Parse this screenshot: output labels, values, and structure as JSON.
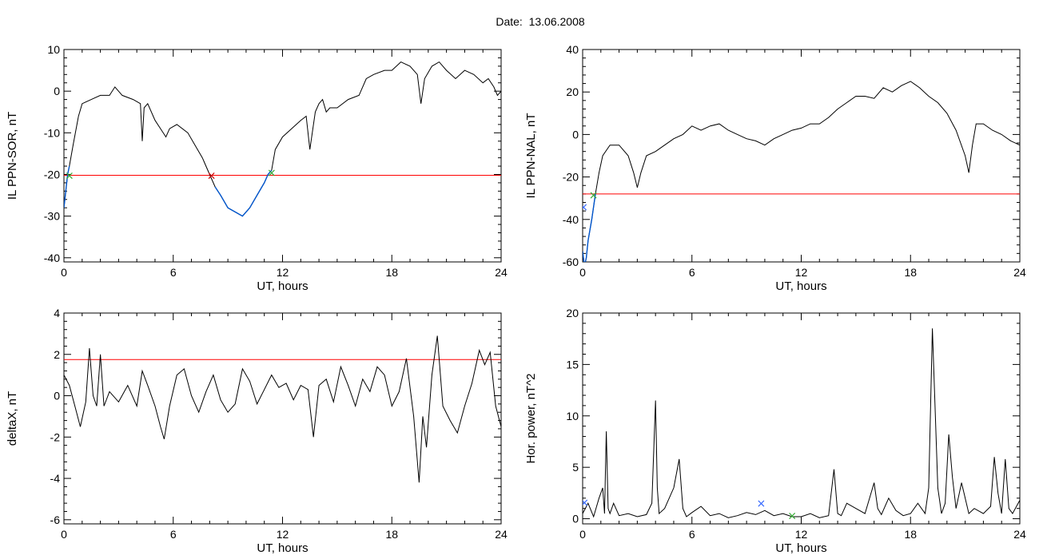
{
  "header": {
    "date_label": "Date:",
    "date_value": "13.06.2008"
  },
  "colors": {
    "axis": "#000000",
    "trace": "#000000",
    "threshold": "#ff0000",
    "highlight": "#0055cc",
    "marker_red": "#cc0000",
    "marker_green": "#33aa33",
    "marker_blue": "#3366ff"
  },
  "chart_data": [
    {
      "type": "line",
      "xlabel": "UT, hours",
      "ylabel": "IL PPN-SOR, nT",
      "xlim": [
        0,
        24
      ],
      "ylim": [
        -41,
        10
      ],
      "xticks": [
        0,
        6,
        12,
        18,
        24
      ],
      "yticks": [
        -40,
        -30,
        -20,
        -10,
        0,
        10
      ],
      "threshold": -20.2,
      "series": [
        {
          "x": [
            0.0,
            0.1,
            0.2,
            0.3,
            0.5,
            0.8,
            1.0,
            1.5,
            2.0,
            2.5,
            2.8,
            3.2,
            3.8,
            4.2,
            4.3,
            4.4,
            4.6,
            5.0,
            5.3,
            5.6,
            5.8,
            6.2,
            6.8,
            7.2,
            7.6,
            8.0,
            8.3,
            8.6,
            9.0,
            9.4,
            9.8,
            10.2,
            10.6,
            11.0,
            11.2,
            11.4,
            11.6,
            12.0,
            12.5,
            13.0,
            13.3,
            13.5,
            13.8,
            14.0,
            14.2,
            14.4,
            14.6,
            15.0,
            15.6,
            16.2,
            16.6,
            17.0,
            17.6,
            18.0,
            18.5,
            19.0,
            19.4,
            19.6,
            19.8,
            20.2,
            20.6,
            21.0,
            21.5,
            22.0,
            22.5,
            23.0,
            23.3,
            23.6,
            23.8,
            24.0
          ],
          "y": [
            -28,
            -24,
            -20,
            -18,
            -13,
            -6,
            -3,
            -2,
            -1,
            -1,
            1,
            -1,
            -2,
            -3,
            -12,
            -4,
            -3,
            -7,
            -9,
            -11,
            -9,
            -8,
            -10,
            -13,
            -16,
            -20,
            -23,
            -25,
            -28,
            -29,
            -30,
            -28,
            -25,
            -22,
            -20,
            -19,
            -14,
            -11,
            -9,
            -7,
            -6,
            -14,
            -5,
            -3,
            -2,
            -5,
            -4,
            -4,
            -2,
            -1,
            3,
            4,
            5,
            5,
            7,
            6,
            4,
            -3,
            3,
            6,
            7,
            5,
            3,
            5,
            4,
            2,
            3,
            1,
            -1,
            0
          ],
          "highlight_range": [
            0.0,
            0.3
          ],
          "highlight_range2": [
            8.1,
            11.5
          ]
        }
      ],
      "markers": [
        {
          "x": 0.3,
          "y": -20.2,
          "symbol": "×",
          "color": "green"
        },
        {
          "x": 8.1,
          "y": -20.2,
          "symbol": "×",
          "color": "red"
        },
        {
          "x": 11.4,
          "y": -19.5,
          "symbol": "×",
          "color": "green"
        }
      ]
    },
    {
      "type": "line",
      "xlabel": "UT, hours",
      "ylabel": "IL PPN-NAL, nT",
      "xlim": [
        0,
        24
      ],
      "ylim": [
        -60,
        40
      ],
      "xticks": [
        0,
        6,
        12,
        18,
        24
      ],
      "yticks": [
        -60,
        -40,
        -20,
        0,
        20,
        40
      ],
      "threshold": -28,
      "series": [
        {
          "x": [
            0.0,
            0.1,
            0.2,
            0.3,
            0.5,
            0.7,
            0.9,
            1.1,
            1.5,
            2.0,
            2.5,
            2.8,
            3.0,
            3.2,
            3.5,
            4.0,
            4.5,
            5.0,
            5.5,
            6.0,
            6.5,
            7.0,
            7.5,
            8.0,
            8.5,
            9.0,
            9.5,
            10.0,
            10.5,
            11.0,
            11.5,
            12.0,
            12.5,
            13.0,
            13.5,
            14.0,
            14.5,
            15.0,
            15.5,
            16.0,
            16.5,
            17.0,
            17.5,
            18.0,
            18.5,
            19.0,
            19.5,
            20.0,
            20.5,
            21.0,
            21.2,
            21.4,
            21.6,
            22.0,
            22.5,
            23.0,
            23.5,
            24.0
          ],
          "y": [
            -55,
            -62,
            -58,
            -50,
            -40,
            -28,
            -18,
            -10,
            -5,
            -5,
            -10,
            -18,
            -25,
            -18,
            -10,
            -8,
            -5,
            -2,
            0,
            4,
            2,
            4,
            5,
            2,
            0,
            -2,
            -3,
            -5,
            -2,
            0,
            2,
            3,
            5,
            5,
            8,
            12,
            15,
            18,
            18,
            17,
            22,
            20,
            23,
            25,
            22,
            18,
            15,
            10,
            2,
            -10,
            -18,
            -5,
            5,
            5,
            2,
            0,
            -3,
            -5
          ],
          "highlight_range": [
            0.0,
            0.7
          ]
        }
      ],
      "markers": [
        {
          "x": 0.05,
          "y": -34,
          "symbol": "×",
          "color": "blue"
        },
        {
          "x": 0.6,
          "y": -28.5,
          "symbol": "×",
          "color": "green"
        }
      ]
    },
    {
      "type": "line",
      "xlabel": "UT, hours",
      "ylabel": "deltaX, nT",
      "xlim": [
        0,
        24
      ],
      "ylim": [
        -6.2,
        4
      ],
      "xticks": [
        0,
        6,
        12,
        18,
        24
      ],
      "yticks": [
        -6,
        -4,
        -2,
        0,
        2,
        4
      ],
      "threshold": 1.75,
      "series": [
        {
          "x": [
            0.0,
            0.3,
            0.6,
            0.9,
            1.2,
            1.4,
            1.6,
            1.8,
            2.0,
            2.2,
            2.5,
            3.0,
            3.5,
            4.0,
            4.3,
            4.6,
            5.0,
            5.3,
            5.5,
            5.8,
            6.2,
            6.6,
            7.0,
            7.4,
            7.8,
            8.2,
            8.6,
            9.0,
            9.4,
            9.8,
            10.2,
            10.6,
            11.0,
            11.4,
            11.8,
            12.2,
            12.6,
            13.0,
            13.4,
            13.7,
            14.0,
            14.4,
            14.8,
            15.2,
            15.6,
            16.0,
            16.4,
            16.8,
            17.2,
            17.6,
            18.0,
            18.4,
            18.8,
            19.2,
            19.5,
            19.7,
            19.9,
            20.2,
            20.5,
            20.8,
            21.2,
            21.6,
            22.0,
            22.4,
            22.8,
            23.1,
            23.4,
            23.7,
            24.0
          ],
          "y": [
            1.0,
            0.5,
            -0.5,
            -1.5,
            -0.3,
            2.3,
            0.0,
            -0.5,
            2.0,
            -0.5,
            0.2,
            -0.3,
            0.5,
            -0.5,
            1.2,
            0.5,
            -0.5,
            -1.5,
            -2.1,
            -0.5,
            1.0,
            1.3,
            0.0,
            -0.8,
            0.2,
            1.0,
            -0.2,
            -0.8,
            -0.4,
            1.3,
            0.7,
            -0.4,
            0.3,
            1.0,
            0.4,
            0.6,
            -0.2,
            0.5,
            0.3,
            -2.0,
            0.5,
            0.8,
            -0.3,
            1.4,
            0.5,
            -0.5,
            0.8,
            0.2,
            1.4,
            1.0,
            -0.5,
            0.2,
            1.8,
            -1.0,
            -4.2,
            -1.0,
            -2.5,
            1.0,
            2.9,
            -0.5,
            -1.2,
            -1.8,
            -0.5,
            0.6,
            2.2,
            1.5,
            2.1,
            -0.5,
            -1.5
          ]
        }
      ]
    },
    {
      "type": "line",
      "xlabel": "UT, hours",
      "ylabel": "Hor. power, nT^2",
      "xlim": [
        0,
        24
      ],
      "ylim": [
        -0.5,
        20
      ],
      "xticks": [
        0,
        6,
        12,
        18,
        24
      ],
      "yticks": [
        0,
        5,
        10,
        15,
        20
      ],
      "series": [
        {
          "x": [
            0.0,
            0.3,
            0.6,
            0.9,
            1.1,
            1.2,
            1.3,
            1.4,
            1.5,
            1.7,
            2.0,
            2.5,
            3.0,
            3.5,
            3.8,
            4.0,
            4.1,
            4.2,
            4.5,
            5.0,
            5.3,
            5.5,
            5.7,
            6.0,
            6.5,
            7.0,
            7.5,
            8.0,
            8.5,
            9.0,
            9.5,
            10.0,
            10.5,
            11.0,
            11.5,
            12.0,
            12.5,
            13.0,
            13.5,
            13.8,
            14.0,
            14.2,
            14.5,
            15.0,
            15.5,
            16.0,
            16.2,
            16.4,
            16.8,
            17.2,
            17.6,
            18.0,
            18.4,
            18.8,
            19.0,
            19.2,
            19.5,
            19.7,
            19.9,
            20.1,
            20.3,
            20.5,
            20.8,
            21.2,
            21.5,
            22.0,
            22.4,
            22.6,
            22.8,
            23.0,
            23.2,
            23.4,
            23.6,
            24.0
          ],
          "y": [
            0.5,
            1.5,
            0.2,
            2.0,
            3.0,
            0.5,
            8.5,
            1.0,
            0.5,
            1.5,
            0.3,
            0.5,
            0.2,
            0.4,
            1.5,
            11.5,
            3.0,
            0.5,
            1.0,
            3.0,
            5.8,
            1.0,
            0.2,
            0.6,
            1.2,
            0.3,
            0.5,
            0.1,
            0.3,
            0.6,
            0.4,
            0.8,
            0.3,
            0.5,
            0.2,
            0.2,
            0.5,
            0.1,
            0.3,
            4.8,
            0.5,
            0.3,
            1.5,
            1.0,
            0.5,
            3.5,
            1.0,
            0.4,
            2.0,
            0.8,
            0.3,
            0.5,
            1.5,
            0.5,
            3.0,
            18.5,
            3.0,
            0.5,
            1.5,
            8.2,
            4.0,
            1.0,
            3.5,
            0.5,
            1.0,
            0.5,
            1.2,
            6.0,
            2.5,
            0.5,
            5.8,
            1.0,
            0.5,
            1.8
          ]
        }
      ],
      "markers": [
        {
          "x": 0.1,
          "y": 1.6,
          "symbol": "×",
          "color": "blue"
        },
        {
          "x": 9.8,
          "y": 1.5,
          "symbol": "×",
          "color": "blue"
        },
        {
          "x": 11.5,
          "y": 0.3,
          "symbol": "×",
          "color": "green"
        }
      ]
    }
  ]
}
